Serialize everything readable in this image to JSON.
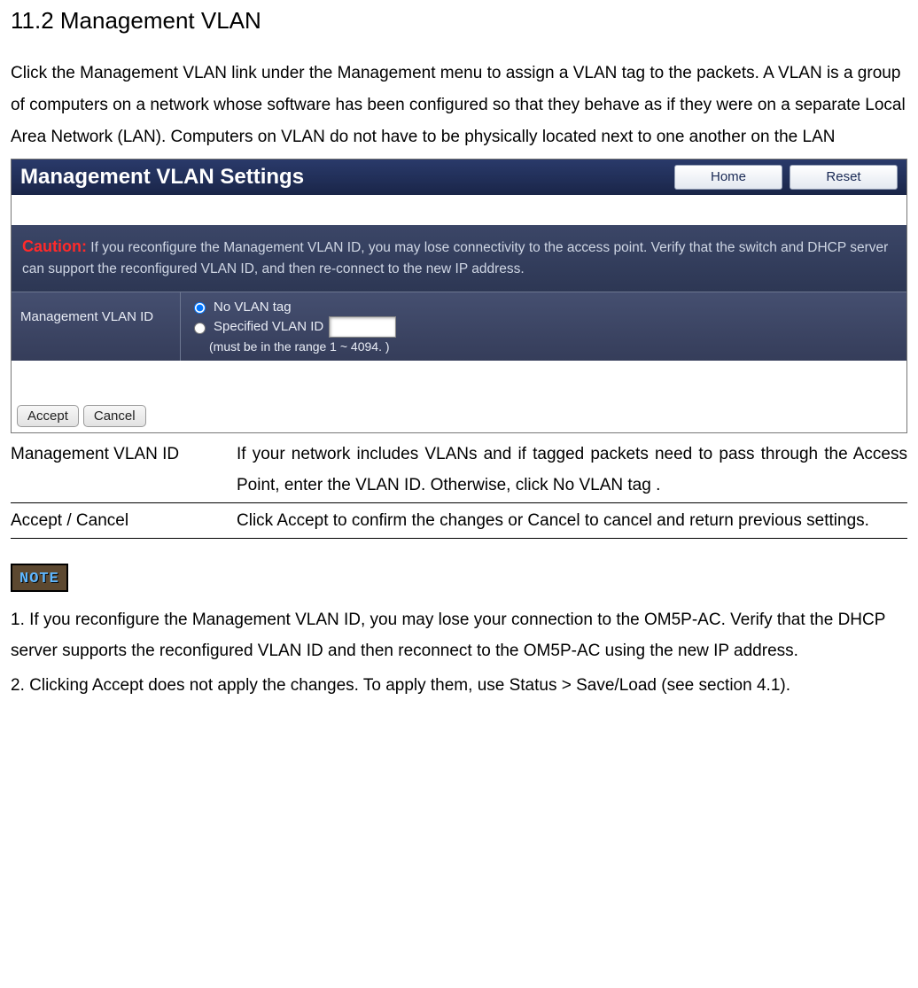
{
  "section": {
    "title": "11.2 Management VLAN",
    "intro": "Click the Management VLAN link under the Management menu to assign a VLAN tag to the packets. A VLAN is a group of computers on a network whose software has been configured so that they behave as if they were on a separate Local Area Network (LAN). Computers on VLAN do not have to be physically located next to one another on the LAN"
  },
  "panel": {
    "title": "Management VLAN Settings",
    "home_btn": "Home",
    "reset_btn": "Reset",
    "caution_label": "Caution:",
    "caution_text": " If you reconfigure the Management VLAN ID, you may lose connectivity to the access point. Verify that the switch and DHCP server can support the reconfigured VLAN ID, and then re-connect to the new IP address.",
    "row_label": "Management VLAN ID",
    "opt_no_tag": "No VLAN tag",
    "opt_spec": "Specified VLAN ID",
    "vlan_input_value": "",
    "range_hint": "(must be in the range 1 ~ 4094. )",
    "accept_btn": "Accept",
    "cancel_btn": "Cancel"
  },
  "definitions": {
    "row1_term": "Management VLAN ID",
    "row1_desc": "If your network includes VLANs and if tagged packets need to pass through  the Access Point, enter the VLAN ID. Otherwise, click No VLAN tag .",
    "row2_term": "Accept / Cancel",
    "row2_desc": "Click Accept to confirm the changes or Cancel to cancel and return previous settings."
  },
  "note": {
    "badge": "NOTE",
    "p1": "1. If you reconfigure the Management VLAN ID, you may lose your connection to the OM5P-AC. Verify that the DHCP server supports the reconfigured VLAN ID and then reconnect to the OM5P-AC using the new IP address.",
    "p2": "2. Clicking Accept does not apply the changes. To apply them, use Status > Save/Load (see section 4.1)."
  },
  "colors": {
    "header_bg": "#22305a",
    "caution_bg": "#333d5c",
    "caution_red": "#ff2a2a",
    "note_badge_bg": "#5c4830",
    "note_badge_text": "#5fb7ff"
  }
}
